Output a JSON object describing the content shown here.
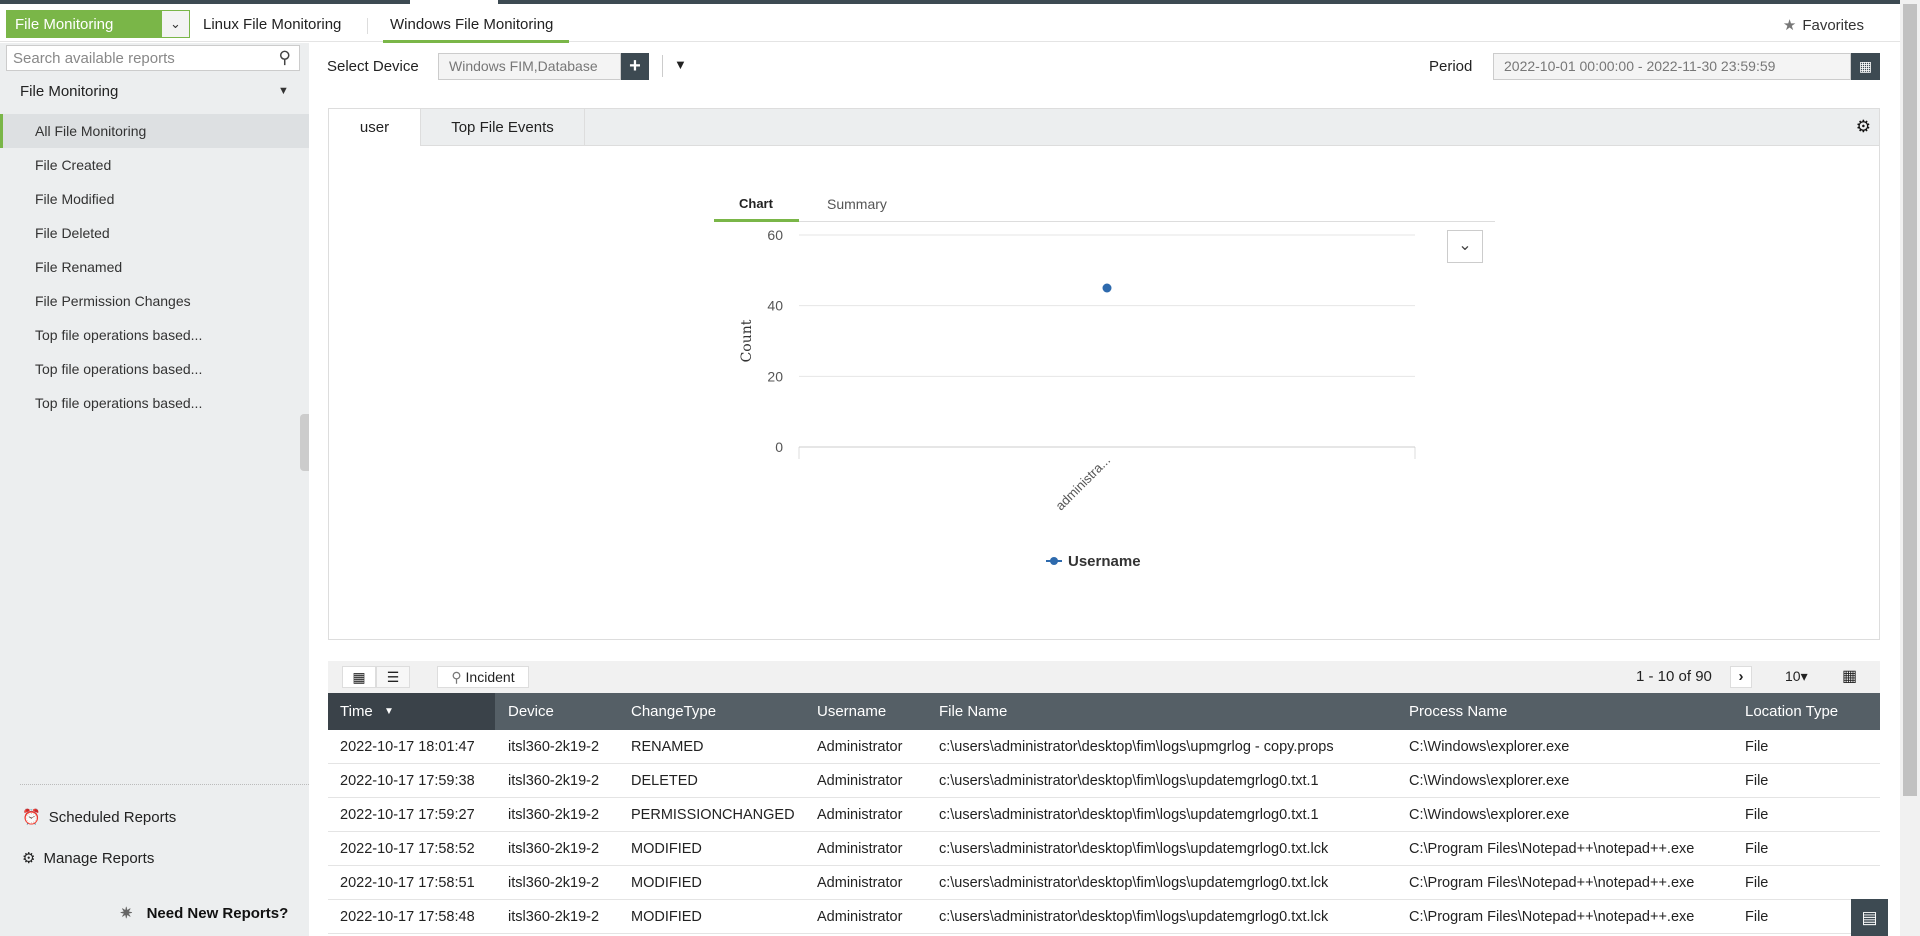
{
  "nav": {
    "module": "File Monitoring",
    "tabs": [
      "Linux File Monitoring",
      "Windows File Monitoring"
    ],
    "active_tab": 1,
    "favorites": "Favorites"
  },
  "sidebar": {
    "search_placeholder": "Search available reports",
    "section": "File Monitoring",
    "items": [
      "All File Monitoring",
      "File Created",
      "File Modified",
      "File Deleted",
      "File Renamed",
      "File Permission Changes",
      "Top file operations based...",
      "Top file operations based...",
      "Top file operations based..."
    ],
    "selected": 0,
    "scheduled": "Scheduled Reports",
    "manage": "Manage Reports",
    "need_new": "Need New Reports?"
  },
  "filters": {
    "device_label": "Select Device",
    "device_value": "Windows FIM,Database",
    "period_label": "Period",
    "period_value": "2022-10-01 00:00:00 - 2022-11-30 23:59:59"
  },
  "report_tabs": [
    "user",
    "Top File Events"
  ],
  "chart_tabs": [
    "Chart",
    "Summary"
  ],
  "chart_data": {
    "type": "scatter",
    "categories": [
      "administra..."
    ],
    "series": [
      {
        "name": "Username",
        "values": [
          45
        ],
        "color": "#2e6aad"
      }
    ],
    "ylabel": "Count",
    "xlabel": "",
    "ylim": [
      0,
      60
    ],
    "yticks": [
      0,
      20,
      40,
      60
    ],
    "grid": true,
    "legend": "bottom"
  },
  "table": {
    "toolbar": {
      "incident": "Incident",
      "pager": "1 - 10 of 90",
      "page_size": "10"
    },
    "columns": [
      "Time",
      "Device",
      "ChangeType",
      "Username",
      "File Name",
      "Process Name",
      "Location Type"
    ],
    "rows": [
      [
        "2022-10-17 18:01:47",
        "itsl360-2k19-2",
        "RENAMED",
        "Administrator",
        "c:\\users\\administrator\\desktop\\fim\\logs\\upmgrlog - copy.props",
        "C:\\Windows\\explorer.exe",
        "File"
      ],
      [
        "2022-10-17 17:59:38",
        "itsl360-2k19-2",
        "DELETED",
        "Administrator",
        "c:\\users\\administrator\\desktop\\fim\\logs\\updatemgrlog0.txt.1",
        "C:\\Windows\\explorer.exe",
        "File"
      ],
      [
        "2022-10-17 17:59:27",
        "itsl360-2k19-2",
        "PERMISSIONCHANGED",
        "Administrator",
        "c:\\users\\administrator\\desktop\\fim\\logs\\updatemgrlog0.txt.1",
        "C:\\Windows\\explorer.exe",
        "File"
      ],
      [
        "2022-10-17 17:58:52",
        "itsl360-2k19-2",
        "MODIFIED",
        "Administrator",
        "c:\\users\\administrator\\desktop\\fim\\logs\\updatemgrlog0.txt.lck",
        "C:\\Program Files\\Notepad++\\notepad++.exe",
        "File"
      ],
      [
        "2022-10-17 17:58:51",
        "itsl360-2k19-2",
        "MODIFIED",
        "Administrator",
        "c:\\users\\administrator\\desktop\\fim\\logs\\updatemgrlog0.txt.lck",
        "C:\\Program Files\\Notepad++\\notepad++.exe",
        "File"
      ],
      [
        "2022-10-17 17:58:48",
        "itsl360-2k19-2",
        "MODIFIED",
        "Administrator",
        "c:\\users\\administrator\\desktop\\fim\\logs\\updatemgrlog0.txt.lck",
        "C:\\Program Files\\Notepad++\\notepad++.exe",
        "File"
      ]
    ]
  },
  "colors": {
    "accent": "#7ab648",
    "dark": "#3d4a52",
    "header": "#555f66"
  }
}
